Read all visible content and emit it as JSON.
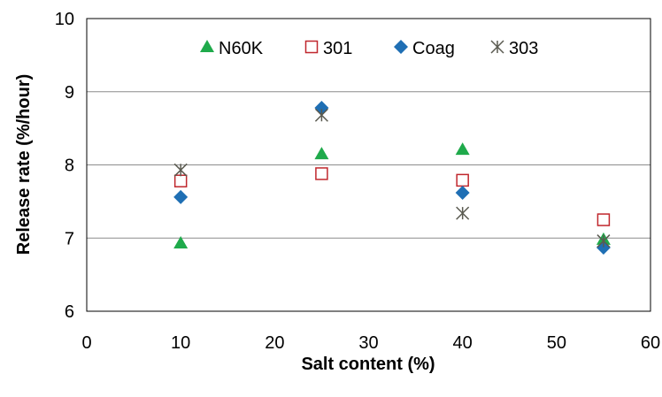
{
  "chart_data": {
    "type": "scatter",
    "title": "",
    "xlabel": "Salt content (%)",
    "ylabel": "Release rate  (%/hour)",
    "xlim": [
      0,
      60
    ],
    "ylim": [
      6,
      10
    ],
    "xticks": [
      "0",
      "10",
      "20",
      "30",
      "40",
      "50",
      "60"
    ],
    "yticks": [
      "6",
      "7",
      "8",
      "9",
      "10"
    ],
    "grid": "horizontal",
    "legend_position": "top",
    "series": [
      {
        "name": "N60K",
        "marker": "triangle",
        "color": "#1faa4b",
        "points": [
          [
            10,
            6.93
          ],
          [
            25,
            8.15
          ],
          [
            40,
            8.21
          ],
          [
            55,
            6.98
          ]
        ]
      },
      {
        "name": "301",
        "marker": "square-open",
        "color": "#c0272d",
        "points": [
          [
            10,
            7.78
          ],
          [
            25,
            7.88
          ],
          [
            40,
            7.79
          ],
          [
            55,
            7.25
          ]
        ]
      },
      {
        "name": "Coag",
        "marker": "diamond",
        "color": "#1f6fb4",
        "points": [
          [
            10,
            7.56
          ],
          [
            25,
            8.78
          ],
          [
            40,
            7.62
          ],
          [
            55,
            6.87
          ]
        ]
      },
      {
        "name": "303",
        "marker": "asterisk",
        "color": "#5a5a50",
        "points": [
          [
            10,
            7.93
          ],
          [
            25,
            8.68
          ],
          [
            40,
            7.34
          ],
          [
            55,
            6.96
          ]
        ]
      }
    ]
  }
}
